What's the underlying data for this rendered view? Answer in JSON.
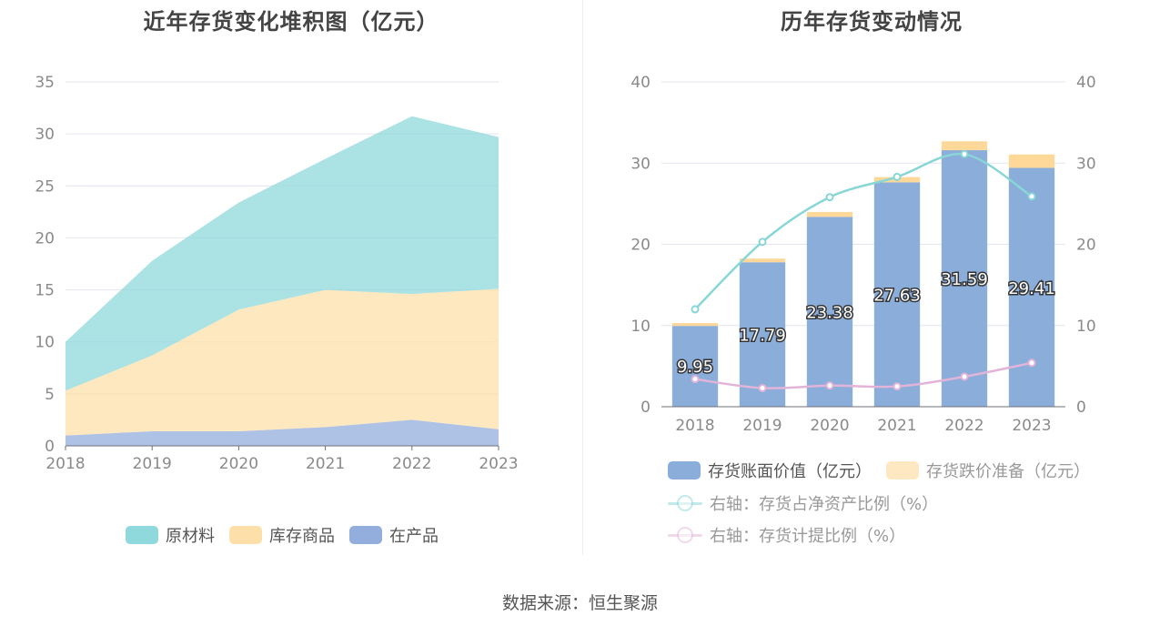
{
  "left_title": "近年存货变化堆积图（亿元）",
  "right_title": "历年存货变动情况",
  "source": "数据来源：恒生聚源",
  "colors": {
    "raw": "#8fd8db",
    "goods": "#fde0a9",
    "wip": "#93aedd",
    "bar_value": "#8badda",
    "bar_reserve": "#fdd899",
    "line_netasset": "#88d6d6",
    "line_provision": "#e2b4d8",
    "grid": "#e3e6ef"
  },
  "legend_left": [
    "原材料",
    "库存商品",
    "在产品"
  ],
  "legend_right": [
    "存货账面价值（亿元）",
    "存货跌价准备（亿元）",
    "右轴：存货占净资产比例（%）",
    "右轴：存货计提比例（%）"
  ],
  "chart_data": [
    {
      "type": "area",
      "stacked": true,
      "title": "近年存货变化堆积图（亿元）",
      "x": [
        "2018",
        "2019",
        "2020",
        "2021",
        "2022",
        "2023"
      ],
      "ylim": [
        0,
        35
      ],
      "yticks": [
        0,
        5,
        10,
        15,
        20,
        25,
        30,
        35
      ],
      "grid": true,
      "legend_position": "bottom",
      "series": [
        {
          "name": "在产品",
          "values": [
            1.0,
            1.4,
            1.4,
            1.8,
            2.5,
            1.6
          ]
        },
        {
          "name": "库存商品",
          "values": [
            4.3,
            7.3,
            11.7,
            13.2,
            12.1,
            13.5
          ]
        },
        {
          "name": "原材料",
          "values": [
            4.7,
            9.1,
            10.3,
            12.6,
            17.1,
            14.6
          ]
        }
      ]
    },
    {
      "type": "bar",
      "stacked": true,
      "title": "历年存货变动情况",
      "categories": [
        "2018",
        "2019",
        "2020",
        "2021",
        "2022",
        "2023"
      ],
      "ylim": [
        0,
        40
      ],
      "yticks": [
        0,
        10,
        20,
        30,
        40
      ],
      "y2lim": [
        0,
        40
      ],
      "y2ticks": [
        0,
        10,
        20,
        30,
        40
      ],
      "grid": true,
      "legend_position": "bottom",
      "series": [
        {
          "name": "存货账面价值（亿元）",
          "values": [
            9.95,
            17.79,
            23.38,
            27.63,
            31.59,
            29.41
          ],
          "labels": [
            "9.95",
            "17.79",
            "23.38",
            "27.63",
            "31.59",
            "29.41"
          ]
        },
        {
          "name": "存货跌价准备（亿元）",
          "values": [
            0.35,
            0.45,
            0.6,
            0.65,
            1.1,
            1.65
          ]
        }
      ],
      "lines": [
        {
          "name": "右轴：存货占净资产比例（%）",
          "axis": "right",
          "values": [
            12.0,
            20.3,
            25.8,
            28.3,
            31.1,
            25.9
          ]
        },
        {
          "name": "右轴：存货计提比例（%）",
          "axis": "right",
          "values": [
            3.4,
            2.3,
            2.6,
            2.5,
            3.7,
            5.4
          ]
        }
      ]
    }
  ]
}
